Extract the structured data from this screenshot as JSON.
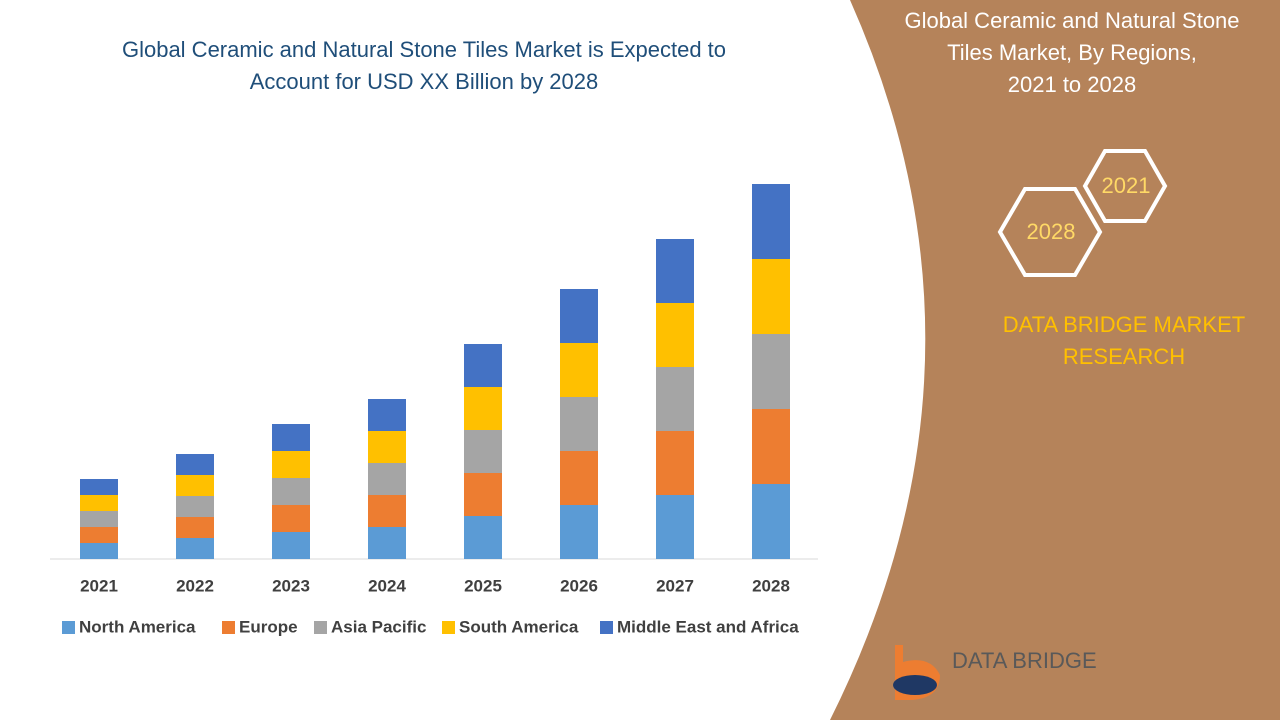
{
  "chart_data": {
    "type": "stacked_bar",
    "title": [
      "Global Ceramic and Natural Stone Tiles Market is Expected to",
      "Account for USD XX Billion by 2028"
    ],
    "categories": [
      "2021",
      "2022",
      "2023",
      "2024",
      "2025",
      "2026",
      "2027",
      "2028"
    ],
    "series": [
      {
        "name": "North America",
        "color": "#5b9bd5",
        "values": [
          16,
          21,
          27,
          32,
          43,
          54,
          64,
          75
        ]
      },
      {
        "name": "Europe",
        "color": "#ed7d31",
        "values": [
          16,
          21,
          27,
          32,
          43,
          54,
          64,
          75
        ]
      },
      {
        "name": "Asia Pacific",
        "color": "#a5a5a5",
        "values": [
          16,
          21,
          27,
          32,
          43,
          54,
          64,
          75
        ]
      },
      {
        "name": "South America",
        "color": "#ffc000",
        "values": [
          16,
          21,
          27,
          32,
          43,
          54,
          64,
          75
        ]
      },
      {
        "name": "Middle East and Africa",
        "color": "#4472c4",
        "values": [
          16,
          21,
          27,
          32,
          43,
          54,
          64,
          75
        ]
      }
    ],
    "ylim": [
      0,
      400
    ],
    "legend": "bottom"
  },
  "panel": {
    "title": [
      "Global Ceramic and Natural Stone",
      "Tiles Market, By Regions,",
      "2021 to 2028"
    ],
    "hex_start": "2021",
    "hex_end": "2028",
    "brand": [
      "DATA BRIDGE MARKET",
      "RESEARCH"
    ]
  },
  "logo": {
    "text": "DATA BRIDGE"
  }
}
